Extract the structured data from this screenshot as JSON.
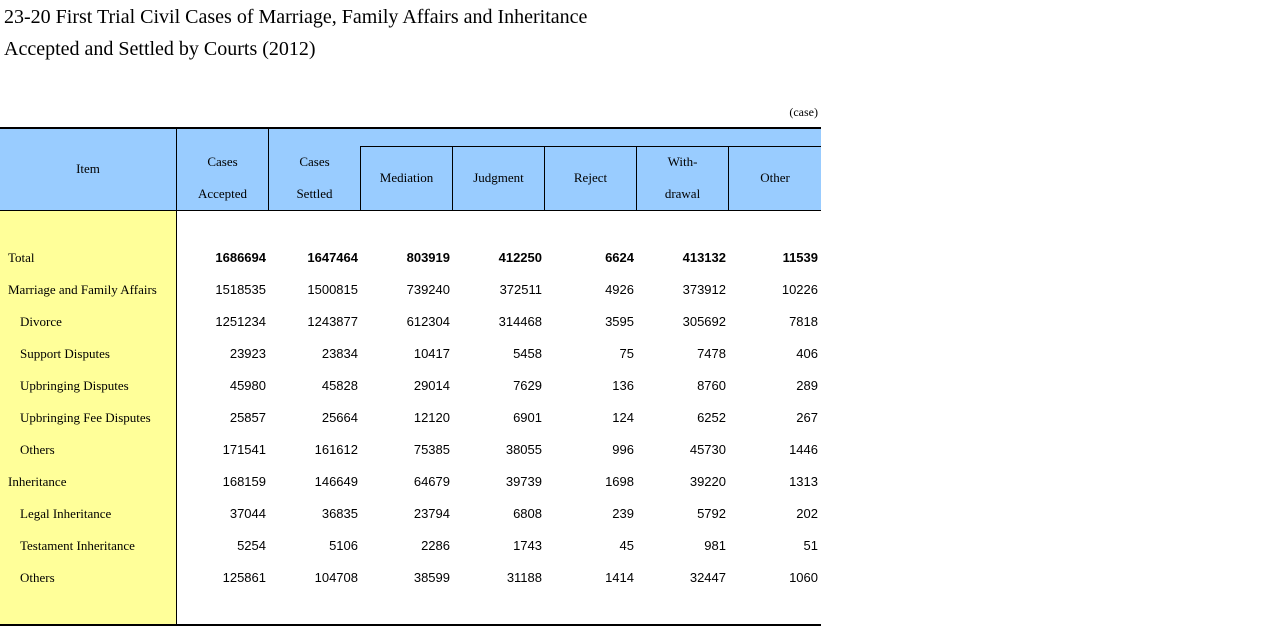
{
  "title_line1": "23-20 First Trial Civil Cases of Marriage, Family Affairs and Inheritance",
  "title_line2": "Accepted and Settled by Courts (2012)",
  "unit": "(case)",
  "headers": {
    "item": "Item",
    "accepted_1": "Cases",
    "accepted_2": "Accepted",
    "settled_1": "Cases",
    "settled_2": "Settled",
    "mediation": "Mediation",
    "judgment": "Judgment",
    "reject": "Reject",
    "withdrawal_1": "With-",
    "withdrawal_2": "drawal",
    "other": "Other"
  },
  "rows": [
    {
      "label": "Total",
      "level": 0,
      "bold": true,
      "values": [
        "1686694",
        "1647464",
        "803919",
        "412250",
        "6624",
        "413132",
        "11539"
      ]
    },
    {
      "label": "Marriage and Family Affairs",
      "level": 0,
      "bold": false,
      "values": [
        "1518535",
        "1500815",
        "739240",
        "372511",
        "4926",
        "373912",
        "10226"
      ]
    },
    {
      "label": "Divorce",
      "level": 1,
      "bold": false,
      "values": [
        "1251234",
        "1243877",
        "612304",
        "314468",
        "3595",
        "305692",
        "7818"
      ]
    },
    {
      "label": "Support Disputes",
      "level": 1,
      "bold": false,
      "values": [
        "23923",
        "23834",
        "10417",
        "5458",
        "75",
        "7478",
        "406"
      ]
    },
    {
      "label": "Upbringing Disputes",
      "level": 1,
      "bold": false,
      "values": [
        "45980",
        "45828",
        "29014",
        "7629",
        "136",
        "8760",
        "289"
      ]
    },
    {
      "label": "Upbringing Fee Disputes",
      "level": 1,
      "bold": false,
      "values": [
        "25857",
        "25664",
        "12120",
        "6901",
        "124",
        "6252",
        "267"
      ]
    },
    {
      "label": "Others",
      "level": 1,
      "bold": false,
      "values": [
        "171541",
        "161612",
        "75385",
        "38055",
        "996",
        "45730",
        "1446"
      ]
    },
    {
      "label": "Inheritance",
      "level": 0,
      "bold": false,
      "values": [
        "168159",
        "146649",
        "64679",
        "39739",
        "1698",
        "39220",
        "1313"
      ]
    },
    {
      "label": "Legal Inheritance",
      "level": 1,
      "bold": false,
      "values": [
        "37044",
        "36835",
        "23794",
        "6808",
        "239",
        "5792",
        "202"
      ]
    },
    {
      "label": "Testament Inheritance",
      "level": 1,
      "bold": false,
      "values": [
        "5254",
        "5106",
        "2286",
        "1743",
        "45",
        "981",
        "51"
      ]
    },
    {
      "label": "Others",
      "level": 1,
      "bold": false,
      "values": [
        "125861",
        "104708",
        "38599",
        "31188",
        "1414",
        "32447",
        "1060"
      ]
    }
  ]
}
